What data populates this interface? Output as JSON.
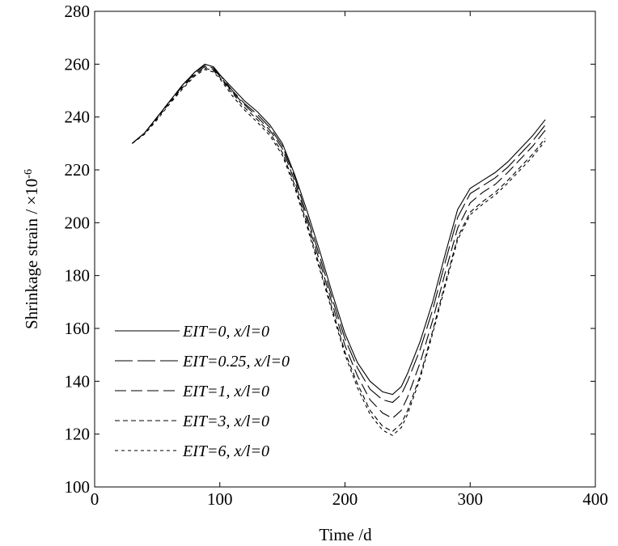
{
  "chart_data": {
    "type": "line",
    "title": "",
    "xlabel": "Time /d",
    "ylabel_text": "Shrinkage strain / ×10",
    "ylabel_exponent": "-6",
    "xlim": [
      0,
      400
    ],
    "ylim": [
      100,
      280
    ],
    "xticks": [
      0,
      100,
      200,
      300,
      400
    ],
    "yticks": [
      100,
      120,
      140,
      160,
      180,
      200,
      220,
      240,
      260,
      280
    ],
    "grid": false,
    "legend_position": "lower-left",
    "series": [
      {
        "name": "EIT=0, x/l=0",
        "dash": "",
        "x": [
          30,
          40,
          50,
          60,
          70,
          80,
          88,
          95,
          100,
          110,
          120,
          130,
          140,
          150,
          160,
          170,
          180,
          190,
          200,
          210,
          220,
          230,
          238,
          245,
          250,
          260,
          270,
          280,
          290,
          300,
          310,
          320,
          330,
          340,
          350,
          360
        ],
        "y": [
          230,
          234,
          240,
          246,
          252,
          257,
          260,
          259,
          256,
          251,
          246,
          242,
          237,
          230,
          218,
          204,
          189,
          173,
          158,
          147,
          140,
          136,
          135,
          138,
          143,
          155,
          170,
          188,
          205,
          213,
          216,
          219,
          223,
          228,
          233,
          239
        ]
      },
      {
        "name": "EIT=0.25, x/l=0",
        "dash": "22 6",
        "x": [
          30,
          40,
          50,
          60,
          70,
          80,
          88,
          95,
          100,
          110,
          120,
          130,
          140,
          150,
          160,
          170,
          180,
          190,
          200,
          210,
          220,
          230,
          238,
          245,
          250,
          260,
          270,
          280,
          290,
          300,
          310,
          320,
          330,
          340,
          350,
          360
        ],
        "y": [
          230,
          234,
          240,
          246,
          252,
          257,
          259.5,
          258.5,
          256,
          250,
          245,
          241,
          236,
          229,
          217,
          202,
          187,
          171,
          156,
          145,
          137,
          133,
          132,
          135,
          140,
          152,
          167,
          185,
          202,
          211,
          214,
          217,
          221,
          226,
          231,
          237
        ]
      },
      {
        "name": "EIT=1, x/l=0",
        "dash": "14 6",
        "x": [
          30,
          40,
          50,
          60,
          70,
          80,
          88,
          95,
          100,
          110,
          120,
          130,
          140,
          150,
          160,
          170,
          180,
          190,
          200,
          210,
          220,
          230,
          238,
          245,
          250,
          260,
          270,
          280,
          290,
          300,
          310,
          320,
          330,
          340,
          350,
          360
        ],
        "y": [
          230,
          234,
          240,
          246,
          251.5,
          256.5,
          259,
          258,
          255.5,
          249.5,
          244.5,
          240,
          235,
          228,
          215.5,
          200.5,
          185,
          169,
          153.5,
          142,
          133,
          128,
          126,
          129,
          134,
          147,
          163,
          181,
          198,
          207.5,
          211.5,
          214.5,
          219,
          224,
          229,
          235
        ]
      },
      {
        "name": "EIT=3, x/l=0",
        "dash": "6 4",
        "x": [
          30,
          40,
          50,
          60,
          70,
          80,
          88,
          95,
          100,
          110,
          120,
          130,
          140,
          150,
          160,
          170,
          180,
          190,
          200,
          210,
          220,
          230,
          238,
          245,
          250,
          260,
          270,
          280,
          290,
          300,
          310,
          320,
          330,
          340,
          350,
          360
        ],
        "y": [
          230,
          234,
          239.5,
          245.5,
          251,
          256,
          258.5,
          257.5,
          255,
          249,
          243.5,
          239,
          234,
          226.5,
          214,
          199,
          183,
          167,
          151,
          139,
          129,
          123,
          121,
          124,
          129,
          142,
          159,
          177,
          194.5,
          204,
          208,
          211.5,
          216,
          221,
          226,
          232
        ]
      },
      {
        "name": "EIT=6, x/l=0",
        "dash": "4 4",
        "x": [
          30,
          40,
          50,
          60,
          70,
          80,
          88,
          95,
          100,
          110,
          120,
          130,
          140,
          150,
          160,
          170,
          180,
          190,
          200,
          210,
          220,
          230,
          238,
          245,
          250,
          260,
          270,
          280,
          290,
          300,
          310,
          320,
          330,
          340,
          350,
          360
        ],
        "y": [
          230,
          233.5,
          239,
          245,
          250.5,
          255.5,
          258,
          257,
          254.5,
          248,
          242.5,
          238,
          233,
          225.5,
          213,
          198,
          182,
          166,
          150,
          137.5,
          127.5,
          121.5,
          119.5,
          122.5,
          127.5,
          141,
          158,
          176,
          193.5,
          203,
          207,
          210.5,
          215,
          220,
          225,
          231
        ]
      }
    ]
  }
}
